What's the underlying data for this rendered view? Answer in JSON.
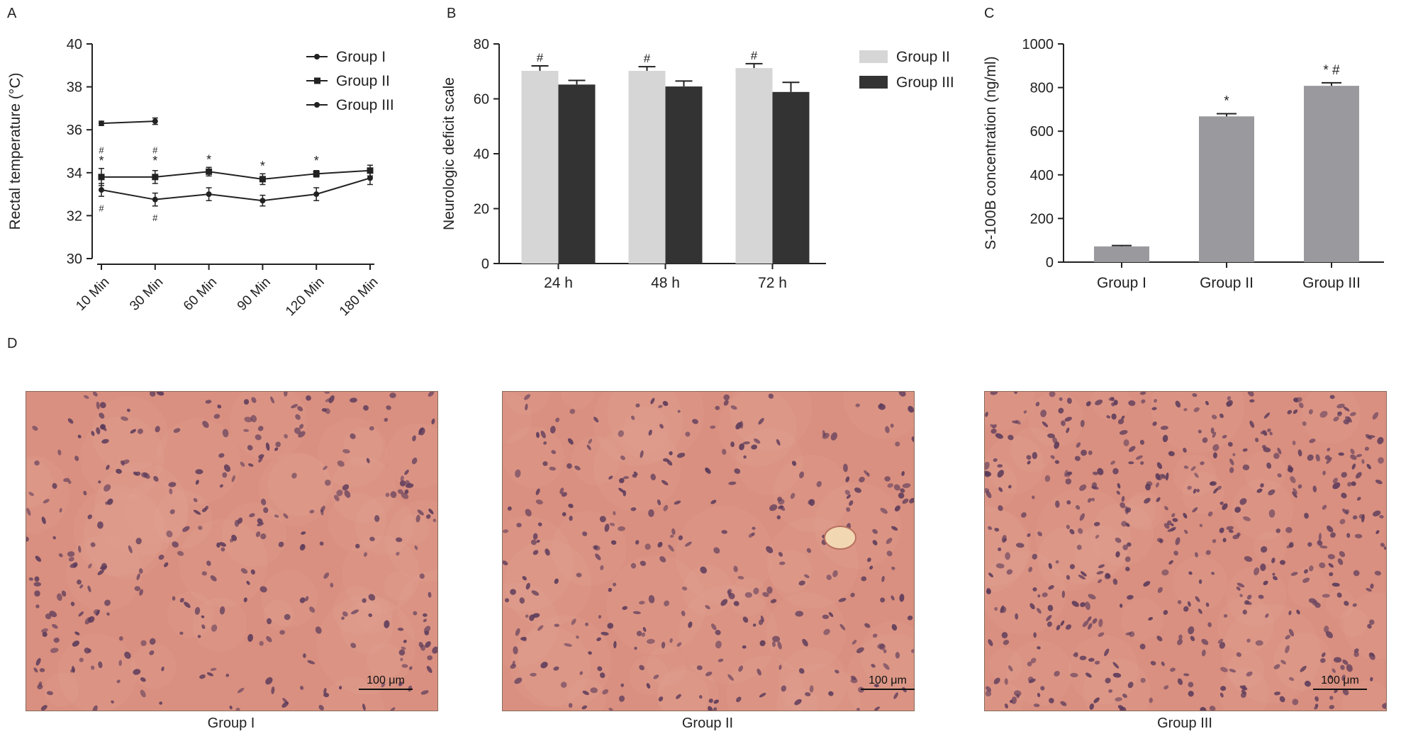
{
  "panels": {
    "A": "A",
    "B": "B",
    "C": "C",
    "D": "D"
  },
  "chart_data": [
    {
      "id": "A",
      "type": "line",
      "xlabel": "",
      "ylabel": "Rectal temperature (°C)",
      "categories": [
        "10 Min",
        "30 Min",
        "60 Min",
        "90 Min",
        "120 Min",
        "180 Min"
      ],
      "yticks": [
        "30",
        "32",
        "34",
        "36",
        "38",
        "40"
      ],
      "ylim": [
        30,
        40
      ],
      "legend_position": "top-right",
      "series": [
        {
          "name": "Group I",
          "marker": "dot",
          "values": [
            36.3,
            36.4,
            null,
            null,
            null,
            null
          ],
          "errors": [
            0.1,
            0.15,
            null,
            null,
            null,
            null
          ]
        },
        {
          "name": "Group II",
          "marker": "square",
          "values": [
            33.8,
            33.8,
            34.05,
            33.7,
            33.95,
            34.1
          ],
          "errors": [
            0.4,
            0.3,
            0.2,
            0.25,
            0.15,
            0.25
          ]
        },
        {
          "name": "Group III",
          "marker": "dot",
          "values": [
            33.2,
            32.75,
            33.0,
            32.7,
            33.0,
            33.75
          ],
          "errors": [
            0.3,
            0.3,
            0.3,
            0.25,
            0.3,
            0.3
          ]
        }
      ],
      "annotations": [
        {
          "category": "10 Min",
          "y": 35.1,
          "text": "#"
        },
        {
          "category": "10 Min",
          "y": 34.55,
          "text": "*"
        },
        {
          "category": "10 Min",
          "y": 32.4,
          "text": "#"
        },
        {
          "category": "30 Min",
          "y": 35.1,
          "text": "#"
        },
        {
          "category": "30 Min",
          "y": 34.55,
          "text": "*"
        },
        {
          "category": "30 Min",
          "y": 31.95,
          "text": "#"
        },
        {
          "category": "60 Min",
          "y": 34.6,
          "text": "*"
        },
        {
          "category": "90 Min",
          "y": 34.3,
          "text": "*"
        },
        {
          "category": "120 Min",
          "y": 34.55,
          "text": "*"
        }
      ]
    },
    {
      "id": "B",
      "type": "bar",
      "xlabel": "",
      "ylabel": "Neurologic deficit scale",
      "categories": [
        "24 h",
        "48 h",
        "72 h"
      ],
      "yticks": [
        "0",
        "20",
        "40",
        "60",
        "80"
      ],
      "ylim": [
        0,
        80
      ],
      "legend_position": "right",
      "series": [
        {
          "name": "Group II",
          "color": "#d6d6d6",
          "values": [
            70.2,
            70.2,
            71.2
          ],
          "errors": [
            1.8,
            1.5,
            1.6
          ]
        },
        {
          "name": "Group III",
          "color": "#333333",
          "values": [
            65.2,
            64.5,
            62.5
          ],
          "errors": [
            1.5,
            2.0,
            3.5
          ]
        }
      ],
      "annotations": [
        {
          "category": "24 h",
          "series": "Group II",
          "text": "#"
        },
        {
          "category": "48 h",
          "series": "Group II",
          "text": "#"
        },
        {
          "category": "72 h",
          "series": "Group II",
          "text": "#"
        }
      ]
    },
    {
      "id": "C",
      "type": "bar",
      "xlabel": "",
      "ylabel": "S-100B concentration (ng/ml)",
      "categories": [
        "Group I",
        "Group II",
        "Group III"
      ],
      "yticks": [
        "0",
        "200",
        "400",
        "600",
        "800",
        "1000"
      ],
      "ylim": [
        0,
        1000
      ],
      "color": "#9a9a9e",
      "values": [
        72,
        668,
        808
      ],
      "errors": [
        4,
        12,
        14
      ],
      "annotations": [
        {
          "category": "Group II",
          "text": "*"
        },
        {
          "category": "Group III",
          "text": "* #"
        }
      ]
    }
  ],
  "micrographs": [
    {
      "caption": "Group I",
      "scale_label": "100 μm"
    },
    {
      "caption": "Group II",
      "scale_label": "100 μm"
    },
    {
      "caption": "Group III",
      "scale_label": "100 μm"
    }
  ],
  "colors": {
    "tissue": "#d99080",
    "nuclei": "#5a3a5a",
    "axis": "#222222"
  }
}
